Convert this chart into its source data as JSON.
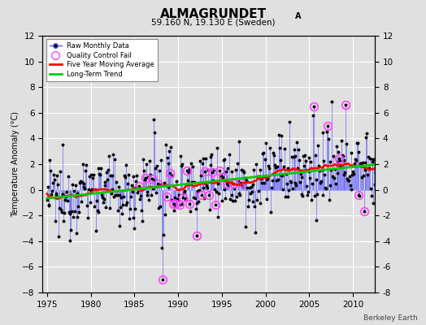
{
  "title_main": "ALMAGRUNDET",
  "title_sub_A": "A",
  "subtitle": "59.160 N, 19.130 E (Sweden)",
  "ylabel": "Temperature Anomaly (°C)",
  "watermark": "Berkeley Earth",
  "xlim": [
    1974.5,
    2012.5
  ],
  "ylim": [
    -8,
    12
  ],
  "yticks": [
    -8,
    -6,
    -4,
    -2,
    0,
    2,
    4,
    6,
    8,
    10,
    12
  ],
  "xticks": [
    1975,
    1980,
    1985,
    1990,
    1995,
    2000,
    2005,
    2010
  ],
  "background_color": "#e0e0e0",
  "grid_color": "#ffffff",
  "raw_line_color": "#5555ff",
  "raw_marker_color": "#000000",
  "moving_avg_color": "#ff0000",
  "trend_color": "#00cc00",
  "qc_fail_color": "#ff44ff",
  "figwidth": 5.24,
  "figheight": 4.0,
  "dpi": 100
}
